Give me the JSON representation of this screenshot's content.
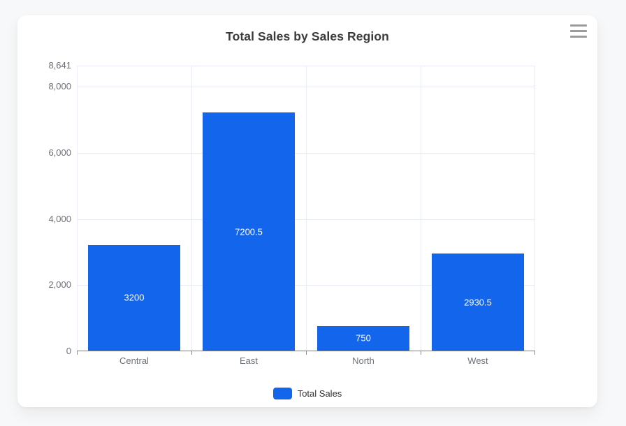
{
  "header": {
    "title": "Total Sales by Sales Region"
  },
  "menu": {
    "icon": "hamburger-icon"
  },
  "legend": {
    "position": "bottom",
    "items": [
      {
        "label": "Total Sales",
        "color": "#1365ec"
      }
    ]
  },
  "colors": {
    "bar": "#1365ec",
    "page_background": "#f7f8f9",
    "card_background": "#ffffff",
    "gridline": "#e7ebf4",
    "axis_line": "#7d7d7d",
    "axis_label": "#6c7077",
    "title": "#3b3b3b",
    "value_label": "#ffffff"
  },
  "chart_data": {
    "type": "bar",
    "title": "Total Sales by Sales Region",
    "xlabel": "",
    "ylabel": "",
    "categories": [
      "Central",
      "East",
      "North",
      "West"
    ],
    "series": [
      {
        "name": "Total Sales",
        "values": [
          3200,
          7200.5,
          750,
          2930.5
        ]
      }
    ],
    "value_labels": [
      "3200",
      "7200.5",
      "750",
      "2930.5"
    ],
    "ylim": [
      0,
      8641
    ],
    "y_ticks": [
      {
        "value": 8641,
        "label": "8,641"
      },
      {
        "value": 8000,
        "label": "8,000"
      },
      {
        "value": 6000,
        "label": "6,000"
      },
      {
        "value": 4000,
        "label": "4,000"
      },
      {
        "value": 2000,
        "label": "2,000"
      },
      {
        "value": 0,
        "label": "0"
      }
    ],
    "grid": true,
    "legend_position": "bottom"
  }
}
